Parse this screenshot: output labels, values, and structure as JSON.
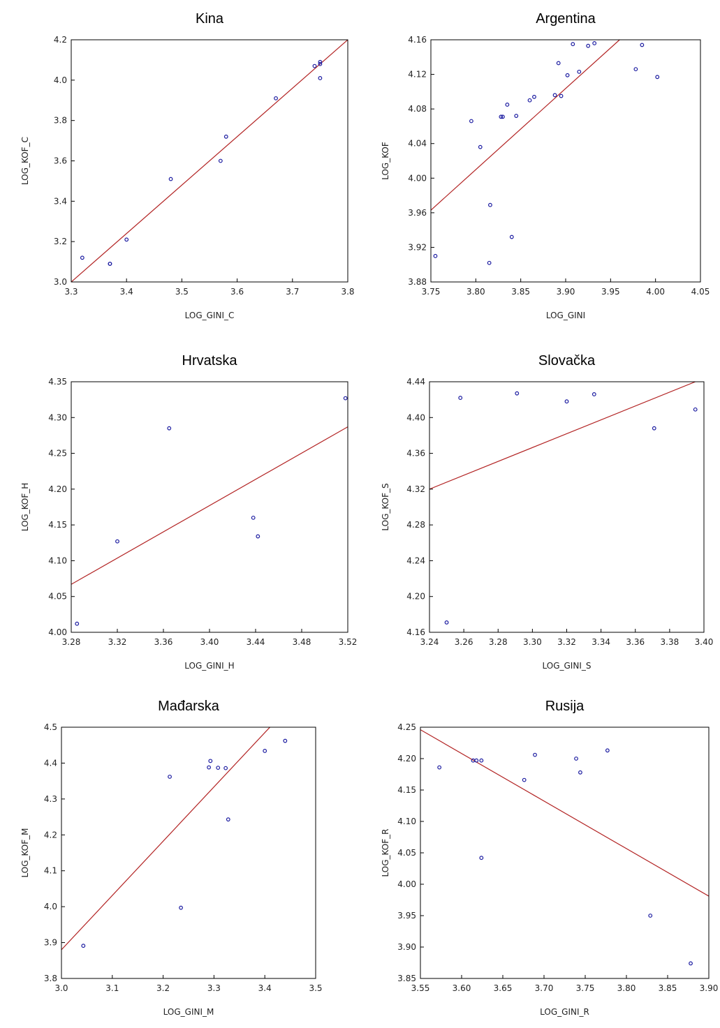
{
  "chart_data": [
    {
      "type": "scatter",
      "title": "Kina",
      "xlabel": "LOG_GINI_C",
      "ylabel": "LOG_KOF_C",
      "xlim": [
        3.3,
        3.8
      ],
      "ylim": [
        3.0,
        4.2
      ],
      "xticks": [
        "3.3",
        "3.4",
        "3.5",
        "3.6",
        "3.7",
        "3.8"
      ],
      "yticks": [
        "3.0",
        "3.2",
        "3.4",
        "3.6",
        "3.8",
        "4.0",
        "4.2"
      ],
      "points": {
        "x": [
          3.32,
          3.37,
          3.37,
          3.4,
          3.48,
          3.57,
          3.58,
          3.67,
          3.74,
          3.75,
          3.75,
          3.75
        ],
        "y": [
          3.12,
          3.09,
          3.09,
          3.21,
          3.51,
          3.6,
          3.72,
          3.91,
          4.07,
          4.09,
          4.08,
          4.01
        ]
      },
      "fit_line": {
        "x": [
          3.3,
          3.8
        ],
        "y": [
          3.0,
          4.2
        ]
      },
      "marker_color": "#1a1aa0",
      "line_color": "#b22222"
    },
    {
      "type": "scatter",
      "title": "Argentina",
      "xlabel": "LOG_GINI",
      "ylabel": "LOG_KOF",
      "xlim": [
        3.75,
        4.05
      ],
      "ylim": [
        3.88,
        4.16
      ],
      "xticks": [
        "3.75",
        "3.80",
        "3.85",
        "3.90",
        "3.95",
        "4.00",
        "4.05"
      ],
      "yticks": [
        "3.88",
        "3.92",
        "3.96",
        "4.00",
        "4.04",
        "4.08",
        "4.12",
        "4.16"
      ],
      "points": {
        "x": [
          3.755,
          3.795,
          3.805,
          3.815,
          3.816,
          3.828,
          3.83,
          3.835,
          3.84,
          3.845,
          3.86,
          3.865,
          3.888,
          3.892,
          3.895,
          3.902,
          3.908,
          3.915,
          3.925,
          3.932,
          3.978,
          3.985,
          4.002
        ],
        "y": [
          3.91,
          4.066,
          4.036,
          3.902,
          3.969,
          4.071,
          4.071,
          4.085,
          3.932,
          4.072,
          4.09,
          4.094,
          4.096,
          4.133,
          4.095,
          4.119,
          4.155,
          4.123,
          4.153,
          4.156,
          4.126,
          4.154,
          4.117
        ]
      },
      "fit_line": {
        "x": [
          3.75,
          3.96
        ],
        "y": [
          3.963,
          4.16
        ]
      },
      "marker_color": "#1a1aa0",
      "line_color": "#b22222"
    },
    {
      "type": "scatter",
      "title": "Hrvatska",
      "xlabel": "LOG_GINI_H",
      "ylabel": "LOG_KOF_H",
      "xlim": [
        3.28,
        3.52
      ],
      "ylim": [
        4.0,
        4.35
      ],
      "xticks": [
        "3.28",
        "3.32",
        "3.36",
        "3.40",
        "3.44",
        "3.48",
        "3.52"
      ],
      "yticks": [
        "4.00",
        "4.05",
        "4.10",
        "4.15",
        "4.20",
        "4.25",
        "4.30",
        "4.35"
      ],
      "points": {
        "x": [
          3.285,
          3.32,
          3.365,
          3.438,
          3.442,
          3.518
        ],
        "y": [
          4.012,
          4.127,
          4.285,
          4.16,
          4.134,
          4.327
        ]
      },
      "fit_line": {
        "x": [
          3.28,
          3.52
        ],
        "y": [
          4.067,
          4.287
        ]
      },
      "marker_color": "#1a1aa0",
      "line_color": "#b22222"
    },
    {
      "type": "scatter",
      "title": "Slovačka",
      "xlabel": "LOG_GINI_S",
      "ylabel": "LOG_KOF_S",
      "xlim": [
        3.24,
        3.4
      ],
      "ylim": [
        4.16,
        4.44
      ],
      "xticks": [
        "3.24",
        "3.26",
        "3.28",
        "3.30",
        "3.32",
        "3.34",
        "3.36",
        "3.38",
        "3.40"
      ],
      "yticks": [
        "4.16",
        "4.20",
        "4.24",
        "4.28",
        "4.32",
        "4.36",
        "4.40",
        "4.44"
      ],
      "points": {
        "x": [
          3.25,
          3.258,
          3.291,
          3.32,
          3.336,
          3.371,
          3.395
        ],
        "y": [
          4.171,
          4.422,
          4.427,
          4.418,
          4.426,
          4.388,
          4.409
        ]
      },
      "fit_line": {
        "x": [
          3.24,
          3.395
        ],
        "y": [
          4.32,
          4.44
        ]
      },
      "marker_color": "#1a1aa0",
      "line_color": "#b22222"
    },
    {
      "type": "scatter",
      "title": "Mađarska",
      "xlabel": "LOG_GINI_M",
      "ylabel": "LOG_KOF_M",
      "xlim": [
        3.0,
        3.5
      ],
      "ylim": [
        3.8,
        4.5
      ],
      "xticks": [
        "3.0",
        "3.1",
        "3.2",
        "3.3",
        "3.4",
        "3.5"
      ],
      "yticks": [
        "3.8",
        "3.9",
        "4.0",
        "4.1",
        "4.2",
        "4.3",
        "4.4",
        "4.5"
      ],
      "points": {
        "x": [
          3.043,
          3.213,
          3.235,
          3.29,
          3.293,
          3.308,
          3.323,
          3.328,
          3.4,
          3.44
        ],
        "y": [
          3.891,
          4.362,
          3.997,
          4.388,
          4.406,
          4.387,
          4.386,
          4.243,
          4.434,
          4.462
        ]
      },
      "fit_line": {
        "x": [
          3.0,
          3.41
        ],
        "y": [
          3.88,
          4.5
        ]
      },
      "marker_color": "#1a1aa0",
      "line_color": "#b22222"
    },
    {
      "type": "scatter",
      "title": "Rusija",
      "xlabel": "LOG_GINI_R",
      "ylabel": "LOG_KOF_R",
      "xlim": [
        3.55,
        3.9
      ],
      "ylim": [
        3.85,
        4.25
      ],
      "xticks": [
        "3.55",
        "3.60",
        "3.65",
        "3.70",
        "3.75",
        "3.80",
        "3.85",
        "3.90"
      ],
      "yticks": [
        "3.85",
        "3.90",
        "3.95",
        "4.00",
        "4.05",
        "4.10",
        "4.15",
        "4.20",
        "4.25"
      ],
      "points": {
        "x": [
          3.573,
          3.614,
          3.618,
          3.624,
          3.624,
          3.676,
          3.689,
          3.739,
          3.744,
          3.777,
          3.829,
          3.878
        ],
        "y": [
          4.186,
          4.197,
          4.197,
          4.197,
          4.042,
          4.166,
          4.206,
          4.2,
          4.178,
          4.213,
          3.95,
          3.874
        ]
      },
      "fit_line": {
        "x": [
          3.55,
          3.9
        ],
        "y": [
          4.246,
          3.981
        ]
      },
      "marker_color": "#1a1aa0",
      "line_color": "#b22222"
    }
  ]
}
